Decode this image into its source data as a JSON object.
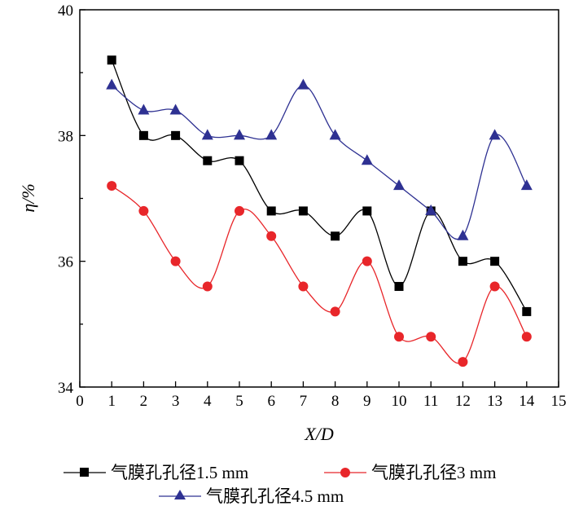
{
  "chart_data": {
    "type": "line",
    "title": "",
    "xlabel": "X/D",
    "ylabel": "η/%",
    "xlim": [
      0,
      15
    ],
    "ylim": [
      34,
      40
    ],
    "xticks": [
      "0",
      "1",
      "2",
      "3",
      "4",
      "5",
      "6",
      "7",
      "8",
      "9",
      "10",
      "11",
      "12",
      "13",
      "14",
      "15"
    ],
    "yticks": [
      "34",
      "36",
      "38",
      "40"
    ],
    "grid": false,
    "legend_position": "bottom",
    "x": [
      1,
      2,
      3,
      4,
      5,
      6,
      7,
      8,
      9,
      10,
      11,
      12,
      13,
      14
    ],
    "series": [
      {
        "name": "气膜孔孔径1.5 mm",
        "color": "#000000",
        "marker": "square",
        "values": [
          39.2,
          38.0,
          38.0,
          37.6,
          37.6,
          36.8,
          36.8,
          36.4,
          36.8,
          35.6,
          36.8,
          36.0,
          36.0,
          35.2
        ]
      },
      {
        "name": "气膜孔孔径3 mm",
        "color": "#e8262a",
        "marker": "circle",
        "values": [
          37.2,
          36.8,
          36.0,
          35.6,
          36.8,
          36.4,
          35.6,
          35.2,
          36.0,
          34.8,
          34.8,
          34.4,
          35.6,
          34.8
        ]
      },
      {
        "name": "气膜孔孔径4.5 mm",
        "color": "#2e3192",
        "marker": "triangle",
        "values": [
          38.8,
          38.4,
          38.4,
          38.0,
          38.0,
          38.0,
          38.8,
          38.0,
          37.6,
          37.2,
          36.8,
          36.4,
          38.0,
          37.2
        ]
      }
    ]
  }
}
